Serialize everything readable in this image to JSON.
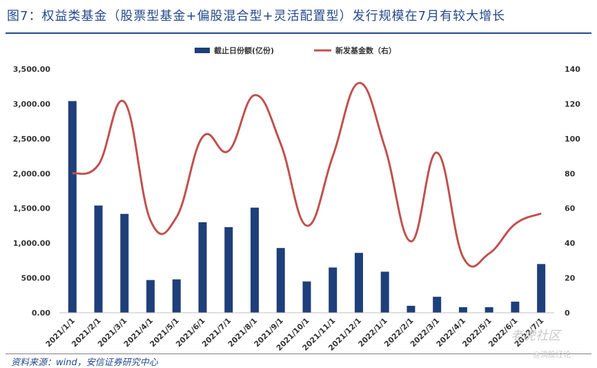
{
  "title": "图7：权益类基金（股票型基金+偏股混合型+灵活配置型）发行规模在7月有较大增长",
  "source": "资料来源：wind，安信证券研究中心",
  "watermark": {
    "brand": "老虎社区",
    "author": "@滴股经论"
  },
  "colors": {
    "bar": "#1f3f7a",
    "line": "#c0504d",
    "title": "#24498c"
  },
  "chart_data": {
    "type": "bar",
    "categories": [
      "2021/1/1",
      "2021/2/1",
      "2021/3/1",
      "2021/4/1",
      "2021/5/1",
      "2021/6/1",
      "2021/7/1",
      "2021/8/1",
      "2021/9/1",
      "2021/10/1",
      "2021/11/1",
      "2021/12/1",
      "2022/1/1",
      "2022/2/1",
      "2022/3/1",
      "2022/4/1",
      "2022/5/1",
      "2022/6/1",
      "2022/7/1"
    ],
    "series": [
      {
        "name": "截止日份额(亿份)",
        "type": "bar",
        "axis": "left",
        "values": [
          3040,
          1540,
          1420,
          470,
          480,
          1300,
          1230,
          1510,
          930,
          450,
          650,
          860,
          590,
          100,
          230,
          80,
          80,
          160,
          700
        ]
      },
      {
        "name": "新发基金数（右）",
        "type": "line",
        "axis": "right",
        "smooth": true,
        "values": [
          80,
          85,
          121,
          53,
          55,
          101,
          93,
          125,
          97,
          50,
          90,
          132,
          95,
          41,
          92,
          32,
          34,
          51,
          57
        ]
      }
    ],
    "yleft": {
      "range": [
        0,
        3500
      ],
      "ticks": [
        "0.00",
        "500.00",
        "1,000.00",
        "1,500.00",
        "2,000.00",
        "2,500.00",
        "3,000.00",
        "3,500.00"
      ]
    },
    "yright": {
      "range": [
        0,
        140
      ],
      "ticks": [
        "0",
        "20",
        "40",
        "60",
        "80",
        "100",
        "120",
        "140"
      ]
    },
    "legend_position": "top-center",
    "grid": false
  }
}
